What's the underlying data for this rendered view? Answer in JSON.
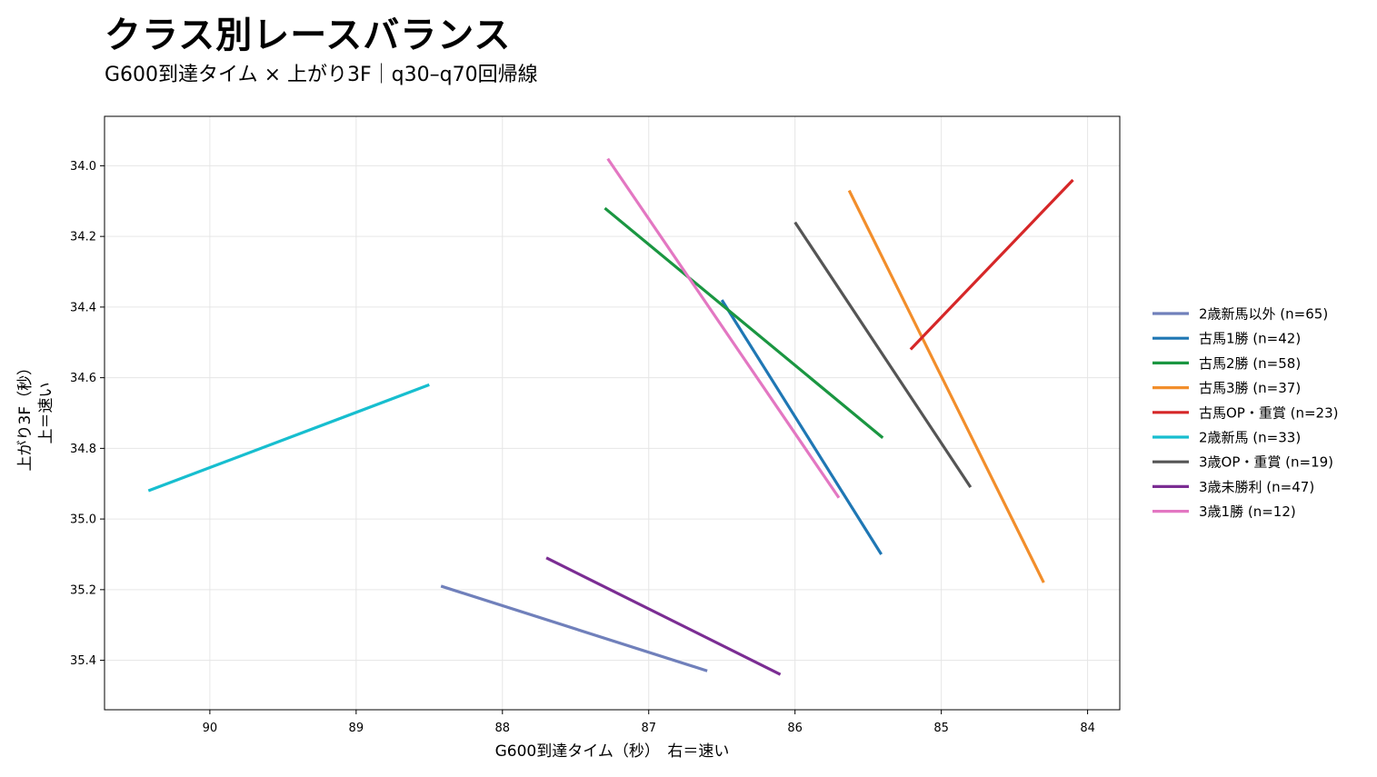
{
  "title": "クラス別レースバランス",
  "subtitle": "G600到達タイム × 上がり3F｜q30–q70回帰線",
  "chart_data": {
    "type": "line",
    "xlabel": "G600到達タイム（秒）　右＝速い",
    "ylabel_lines": [
      "上がり3F（秒）",
      "上＝速い"
    ],
    "x_inverted": true,
    "y_inverted": true,
    "xlim": [
      90.72,
      83.78
    ],
    "ylim": [
      35.54,
      33.86
    ],
    "x_ticks": [
      90,
      89,
      88,
      87,
      86,
      85,
      84
    ],
    "y_ticks": [
      34.0,
      34.2,
      34.4,
      34.6,
      34.8,
      35.0,
      35.2,
      35.4
    ],
    "y_tick_labels": [
      "34.0",
      "34.2",
      "34.4",
      "34.6",
      "34.8",
      "35.0",
      "35.2",
      "35.4"
    ],
    "grid": true,
    "legend_position": "right",
    "series": [
      {
        "name": "2歳新馬以外 (n=65)",
        "color": "#7080bb",
        "x": [
          88.42,
          86.6
        ],
        "y": [
          35.19,
          35.43
        ]
      },
      {
        "name": "古馬1勝 (n=42)",
        "color": "#1f77b4",
        "x": [
          86.5,
          85.41
        ],
        "y": [
          34.38,
          35.1
        ]
      },
      {
        "name": "古馬2勝 (n=58)",
        "color": "#1a9641",
        "x": [
          87.3,
          85.4
        ],
        "y": [
          34.12,
          34.77
        ]
      },
      {
        "name": "古馬3勝 (n=37)",
        "color": "#f28e2b",
        "x": [
          85.63,
          84.3
        ],
        "y": [
          34.07,
          35.18
        ]
      },
      {
        "name": "古馬OP・重賞 (n=23)",
        "color": "#d62728",
        "x": [
          85.21,
          84.1
        ],
        "y": [
          34.52,
          34.04
        ]
      },
      {
        "name": "2歳新馬 (n=33)",
        "color": "#17becf",
        "x": [
          90.42,
          88.5
        ],
        "y": [
          34.92,
          34.62
        ]
      },
      {
        "name": "3歳OP・重賞 (n=19)",
        "color": "#555555",
        "x": [
          86.0,
          84.8
        ],
        "y": [
          34.16,
          34.91
        ]
      },
      {
        "name": "3歳未勝利 (n=47)",
        "color": "#7b2d93",
        "x": [
          87.7,
          86.1
        ],
        "y": [
          35.11,
          35.44
        ]
      },
      {
        "name": "3歳1勝 (n=12)",
        "color": "#e377c2",
        "x": [
          87.28,
          85.7
        ],
        "y": [
          33.98,
          34.94
        ]
      }
    ]
  }
}
